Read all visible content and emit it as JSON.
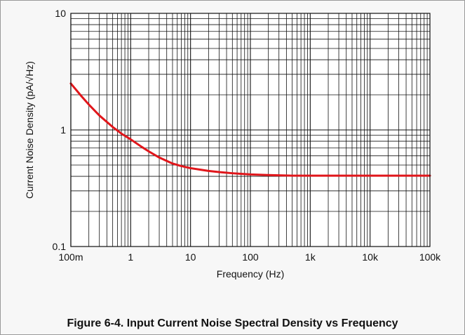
{
  "caption": "Figure 6-4. Input Current Noise Spectral Density vs Frequency",
  "chart_data": {
    "type": "line",
    "title": "",
    "xlabel": "Frequency (Hz)",
    "ylabel": "Current Noise Density (pA/√Hz)",
    "x_scale": "log",
    "y_scale": "log",
    "xlim": [
      0.1,
      100000
    ],
    "ylim": [
      0.1,
      10
    ],
    "grid": true,
    "x_ticks": [
      {
        "value": 0.1,
        "label": "100m"
      },
      {
        "value": 1,
        "label": "1"
      },
      {
        "value": 10,
        "label": "10"
      },
      {
        "value": 100,
        "label": "100"
      },
      {
        "value": 1000,
        "label": "1k"
      },
      {
        "value": 10000,
        "label": "10k"
      },
      {
        "value": 100000,
        "label": "100k"
      }
    ],
    "y_ticks": [
      {
        "value": 0.1,
        "label": "0.1"
      },
      {
        "value": 1,
        "label": "1"
      },
      {
        "value": 10,
        "label": "10"
      }
    ],
    "series": [
      {
        "color": "#e0161b",
        "x": [
          0.1,
          0.15,
          0.2,
          0.3,
          0.5,
          0.7,
          1,
          1.5,
          2,
          3,
          5,
          7,
          10,
          15,
          20,
          30,
          50,
          70,
          100,
          200,
          500,
          1000,
          10000,
          100000
        ],
        "y": [
          2.5,
          1.95,
          1.65,
          1.33,
          1.06,
          0.93,
          0.83,
          0.72,
          0.655,
          0.58,
          0.515,
          0.49,
          0.47,
          0.455,
          0.445,
          0.435,
          0.425,
          0.42,
          0.415,
          0.41,
          0.405,
          0.405,
          0.405,
          0.405
        ]
      }
    ]
  }
}
